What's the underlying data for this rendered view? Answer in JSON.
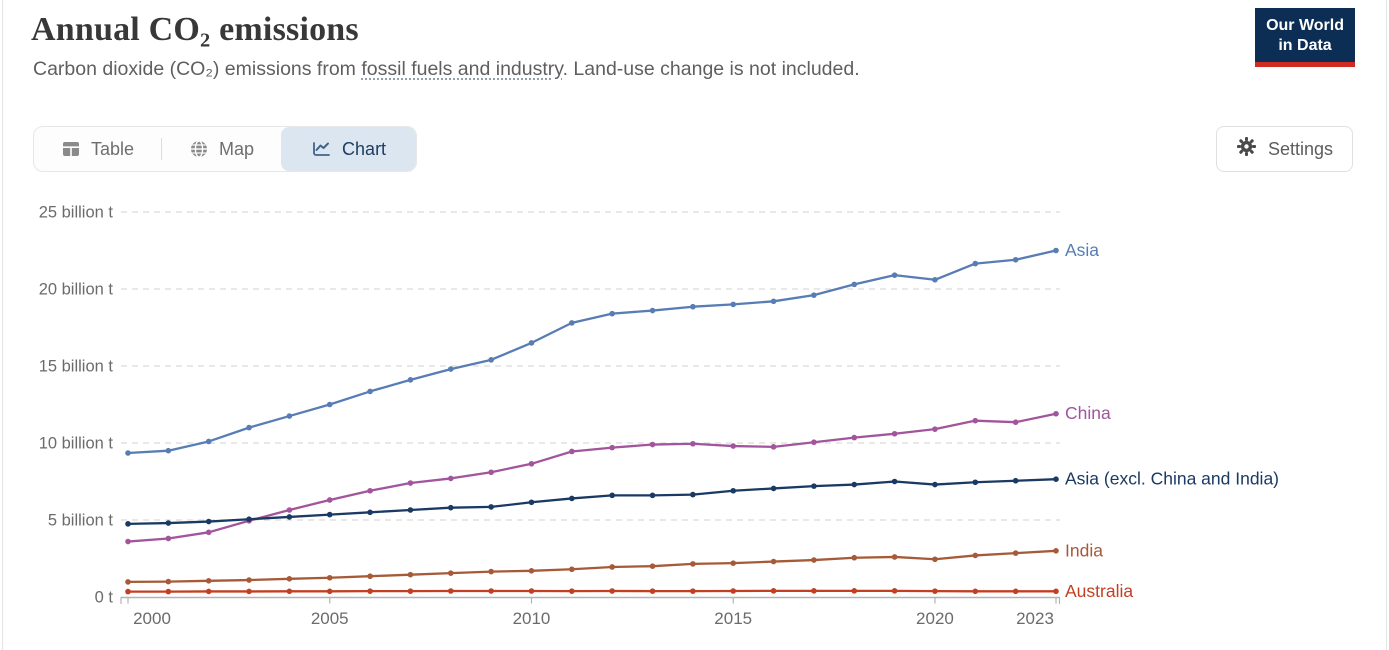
{
  "header": {
    "title": "Annual CO₂ emissions",
    "subtitle_prefix": "Carbon dioxide (CO₂) emissions from ",
    "subtitle_link": "fossil fuels and industry",
    "subtitle_suffix": ". Land-use change is not included.",
    "logo_line1": "Our World",
    "logo_line2": "in Data",
    "logo_bg": "#0c2d54",
    "logo_accent": "#cf2b22"
  },
  "tabs": {
    "items": [
      {
        "label": "Table",
        "icon": "table-icon",
        "active": false
      },
      {
        "label": "Map",
        "icon": "globe-icon",
        "active": false
      },
      {
        "label": "Chart",
        "icon": "line-chart-icon",
        "active": true
      }
    ],
    "active_bg": "#dce6f1",
    "active_text": "#1d3d63"
  },
  "toolbar": {
    "settings_label": "Settings"
  },
  "chart_data": {
    "type": "line",
    "title": "Annual CO₂ emissions",
    "unit": "billion t",
    "x": [
      2000,
      2001,
      2002,
      2003,
      2004,
      2005,
      2006,
      2007,
      2008,
      2009,
      2010,
      2011,
      2012,
      2013,
      2014,
      2015,
      2016,
      2017,
      2018,
      2019,
      2020,
      2021,
      2022,
      2023
    ],
    "xlim": [
      2000,
      2023
    ],
    "ylim": [
      0,
      25
    ],
    "grid": true,
    "legend_position": "right-end-labels",
    "series": [
      {
        "name": "Asia",
        "color": "#587CB4",
        "values": [
          9.35,
          9.5,
          10.1,
          11.0,
          11.75,
          12.5,
          13.35,
          14.1,
          14.8,
          15.4,
          16.5,
          17.8,
          18.4,
          18.6,
          18.85,
          19.0,
          19.2,
          19.6,
          20.3,
          20.9,
          20.6,
          21.65,
          21.9,
          22.5
        ]
      },
      {
        "name": "China",
        "color": "#A2559C",
        "values": [
          3.6,
          3.8,
          4.2,
          4.95,
          5.65,
          6.3,
          6.9,
          7.4,
          7.7,
          8.1,
          8.65,
          9.45,
          9.7,
          9.9,
          9.95,
          9.8,
          9.75,
          10.05,
          10.35,
          10.6,
          10.9,
          11.45,
          11.35,
          11.9
        ]
      },
      {
        "name": "Asia (excl. China and India)",
        "color": "#1A3A63",
        "values": [
          4.75,
          4.8,
          4.9,
          5.05,
          5.2,
          5.35,
          5.5,
          5.65,
          5.8,
          5.85,
          6.15,
          6.4,
          6.6,
          6.6,
          6.65,
          6.9,
          7.05,
          7.2,
          7.3,
          7.5,
          7.3,
          7.45,
          7.55,
          7.65
        ]
      },
      {
        "name": "India",
        "color": "#A65A38",
        "values": [
          0.98,
          1.0,
          1.05,
          1.1,
          1.18,
          1.25,
          1.35,
          1.45,
          1.55,
          1.65,
          1.7,
          1.8,
          1.95,
          2.0,
          2.15,
          2.2,
          2.3,
          2.4,
          2.55,
          2.6,
          2.45,
          2.7,
          2.85,
          3.0
        ]
      },
      {
        "name": "Australia",
        "color": "#C23F22",
        "values": [
          0.35,
          0.35,
          0.36,
          0.36,
          0.37,
          0.37,
          0.38,
          0.38,
          0.39,
          0.39,
          0.39,
          0.38,
          0.39,
          0.38,
          0.38,
          0.39,
          0.4,
          0.4,
          0.4,
          0.4,
          0.38,
          0.37,
          0.37,
          0.37
        ]
      }
    ],
    "yticks": [
      {
        "value": 25,
        "label": "25 billion t"
      },
      {
        "value": 20,
        "label": "20 billion t"
      },
      {
        "value": 15,
        "label": "15 billion t"
      },
      {
        "value": 10,
        "label": "10 billion t"
      },
      {
        "value": 5,
        "label": "5 billion t"
      },
      {
        "value": 0,
        "label": "0 t"
      }
    ],
    "xticks": [
      {
        "year": 2000,
        "label": "2000"
      },
      {
        "year": 2005,
        "label": "2005"
      },
      {
        "year": 2010,
        "label": "2010"
      },
      {
        "year": 2015,
        "label": "2015"
      },
      {
        "year": 2020,
        "label": "2020"
      },
      {
        "year": 2023,
        "label": "2023"
      }
    ],
    "colors": {
      "grid": "#dadada",
      "axis": "#b3b3b3",
      "tick_text": "#6b6b6b"
    }
  }
}
